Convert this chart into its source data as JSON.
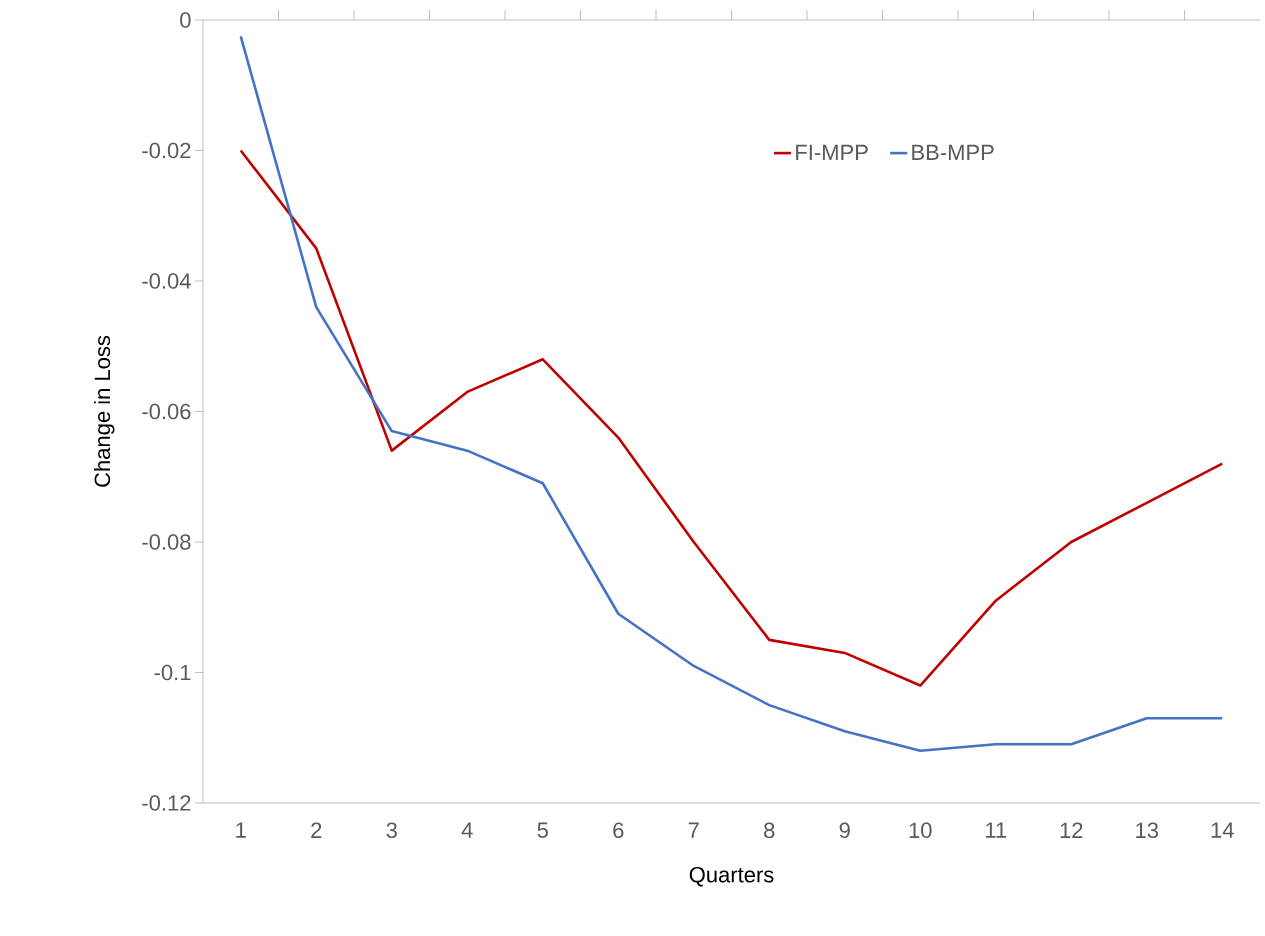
{
  "chart_data": {
    "type": "line",
    "xlabel": "Quarters",
    "ylabel": "Change in Loss",
    "categories": [
      "1",
      "2",
      "3",
      "4",
      "5",
      "6",
      "7",
      "8",
      "9",
      "10",
      "11",
      "12",
      "13",
      "14"
    ],
    "series": [
      {
        "name": "FI-MPP",
        "color": "#c00000",
        "values": [
          -0.02,
          -0.035,
          -0.066,
          -0.057,
          -0.052,
          -0.064,
          -0.08,
          -0.095,
          -0.097,
          -0.102,
          -0.089,
          -0.08,
          -0.074,
          -0.068
        ]
      },
      {
        "name": "BB-MPP",
        "color": "#4472c4",
        "values": [
          -0.0025,
          -0.044,
          -0.063,
          -0.066,
          -0.071,
          -0.091,
          -0.099,
          -0.105,
          -0.109,
          -0.112,
          -0.111,
          -0.111,
          -0.107,
          -0.107
        ]
      }
    ],
    "ylim": [
      -0.12,
      0
    ],
    "yticks": [
      -0.12,
      -0.1,
      -0.08,
      -0.06,
      -0.04,
      -0.02,
      0
    ],
    "legend": "top right",
    "grid": false,
    "marker": "none",
    "line_style": "solid"
  }
}
